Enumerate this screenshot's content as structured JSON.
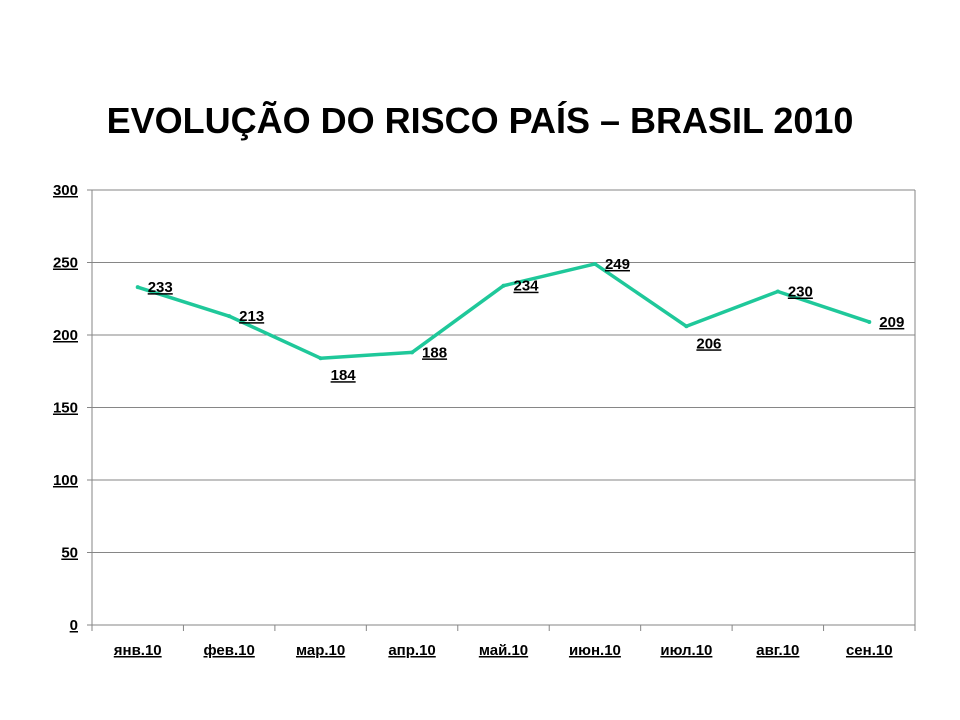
{
  "chart_data": {
    "type": "line",
    "title": "EVOLUÇÃO DO RISCO PAÍS – BRASIL 2010",
    "categories": [
      "янв.10",
      "фев.10",
      "мар.10",
      "апр.10",
      "май.10",
      "июн.10",
      "июл.10",
      "авг.10",
      "сен.10"
    ],
    "series": [
      {
        "values": [
          233,
          213,
          184,
          188,
          234,
          249,
          206,
          230,
          209
        ],
        "color": "#1fc89a"
      }
    ],
    "ylim": [
      0,
      300
    ],
    "yticks": [
      0,
      50,
      100,
      150,
      200,
      250,
      300
    ],
    "grid": true,
    "legend": "none",
    "data_labels": true
  }
}
